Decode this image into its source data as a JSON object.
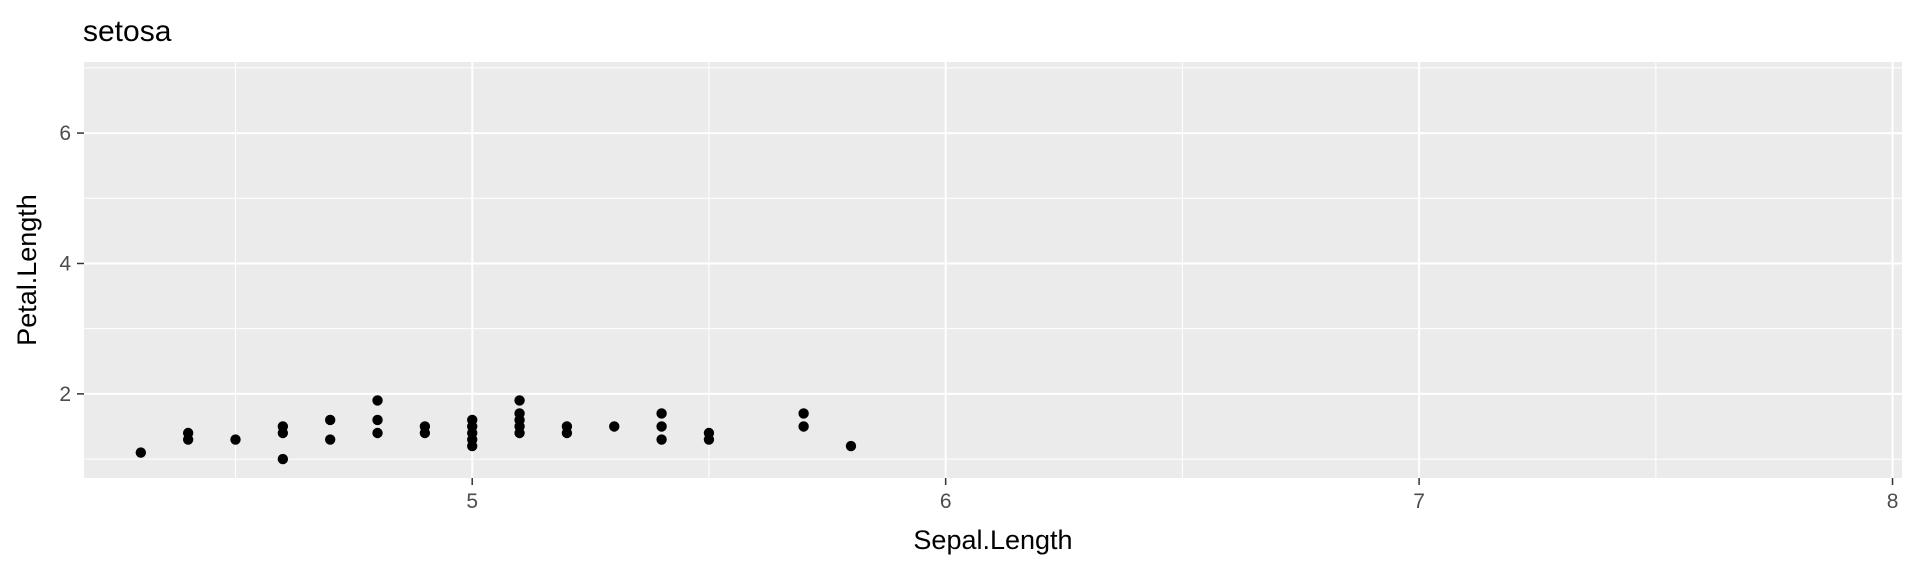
{
  "chart_data": {
    "type": "scatter",
    "title": "setosa",
    "xlabel": "Sepal.Length",
    "ylabel": "Petal.Length",
    "xlim": [
      4.18,
      8.02
    ],
    "ylim": [
      0.71,
      7.09
    ],
    "xticks": [
      5,
      6,
      7,
      8
    ],
    "yticks": [
      2,
      4,
      6
    ],
    "x_minor": [
      4.5,
      5.5,
      6.5,
      7.5
    ],
    "y_minor": [
      1,
      3,
      5,
      7
    ],
    "grid": true,
    "legend": "none",
    "colors": {
      "panel": "#ebebeb",
      "grid": "#ffffff",
      "point": "#000000",
      "tick": "#333333"
    },
    "points": [
      {
        "x": 4.3,
        "y": 1.1
      },
      {
        "x": 4.4,
        "y": 1.3
      },
      {
        "x": 4.4,
        "y": 1.4
      },
      {
        "x": 4.5,
        "y": 1.3
      },
      {
        "x": 4.6,
        "y": 1.0
      },
      {
        "x": 4.6,
        "y": 1.4
      },
      {
        "x": 4.6,
        "y": 1.5
      },
      {
        "x": 4.7,
        "y": 1.3
      },
      {
        "x": 4.7,
        "y": 1.6
      },
      {
        "x": 4.8,
        "y": 1.4
      },
      {
        "x": 4.8,
        "y": 1.6
      },
      {
        "x": 4.8,
        "y": 1.9
      },
      {
        "x": 4.9,
        "y": 1.4
      },
      {
        "x": 4.9,
        "y": 1.5
      },
      {
        "x": 5.0,
        "y": 1.2
      },
      {
        "x": 5.0,
        "y": 1.3
      },
      {
        "x": 5.0,
        "y": 1.4
      },
      {
        "x": 5.0,
        "y": 1.5
      },
      {
        "x": 5.0,
        "y": 1.6
      },
      {
        "x": 5.1,
        "y": 1.4
      },
      {
        "x": 5.1,
        "y": 1.5
      },
      {
        "x": 5.1,
        "y": 1.6
      },
      {
        "x": 5.1,
        "y": 1.7
      },
      {
        "x": 5.1,
        "y": 1.9
      },
      {
        "x": 5.2,
        "y": 1.4
      },
      {
        "x": 5.2,
        "y": 1.5
      },
      {
        "x": 5.3,
        "y": 1.5
      },
      {
        "x": 5.4,
        "y": 1.3
      },
      {
        "x": 5.4,
        "y": 1.5
      },
      {
        "x": 5.4,
        "y": 1.7
      },
      {
        "x": 5.5,
        "y": 1.3
      },
      {
        "x": 5.5,
        "y": 1.4
      },
      {
        "x": 5.7,
        "y": 1.5
      },
      {
        "x": 5.7,
        "y": 1.7
      },
      {
        "x": 5.8,
        "y": 1.2
      }
    ]
  }
}
